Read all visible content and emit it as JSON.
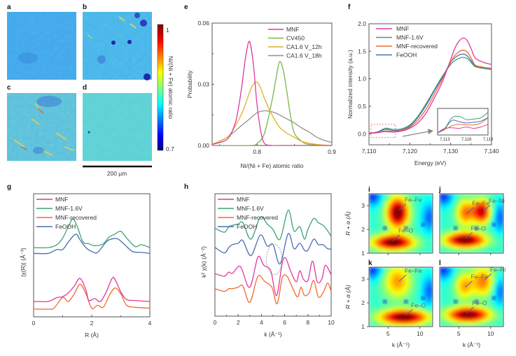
{
  "panels": {
    "a": {
      "label": "a"
    },
    "b": {
      "label": "b"
    },
    "c": {
      "label": "c"
    },
    "d": {
      "label": "d"
    },
    "scalebar": {
      "label": "200 μm"
    },
    "colorbar": {
      "label": "Ni/(Ni + Fe) atomic ratio",
      "max_label": "1",
      "min_label": "0.7",
      "range": [
        0.7,
        1.0
      ]
    },
    "map_means": {
      "a": 0.78,
      "b": 0.78,
      "c": 0.8,
      "d": 0.81
    }
  },
  "chart_data": [
    {
      "id": "e",
      "panel_label": "e",
      "type": "line",
      "title": "",
      "xlabel": "Ni/(Ni + Fe) atomic ratio",
      "ylabel": "Probability",
      "xlim": [
        0.74,
        0.9
      ],
      "ylim": [
        0,
        0.06
      ],
      "xticks": [
        0.8,
        0.9
      ],
      "xtick_labels": [
        "0.8",
        "0.9"
      ],
      "yticks": [
        0,
        0.03,
        0.06
      ],
      "ytick_labels": [
        "0.00",
        "0.03",
        "0.06"
      ],
      "legend_position": "top-right",
      "series": [
        {
          "name": "MNF",
          "color": "#e0399e",
          "x": [
            0.74,
            0.76,
            0.77,
            0.775,
            0.78,
            0.785,
            0.79,
            0.795,
            0.8,
            0.805,
            0.81,
            0.82,
            0.83,
            0.9
          ],
          "y": [
            0.0005,
            0.003,
            0.01,
            0.018,
            0.03,
            0.044,
            0.051,
            0.04,
            0.02,
            0.007,
            0.001,
            0,
            0,
            0
          ]
        },
        {
          "name": "CV450",
          "color": "#7ab648",
          "x": [
            0.74,
            0.79,
            0.8,
            0.81,
            0.82,
            0.825,
            0.83,
            0.835,
            0.84,
            0.845,
            0.85,
            0.86,
            0.87,
            0.9
          ],
          "y": [
            0,
            0,
            0.001,
            0.006,
            0.022,
            0.032,
            0.041,
            0.037,
            0.026,
            0.014,
            0.006,
            0.002,
            0.0005,
            0
          ]
        },
        {
          "name": "CA1.6 V_12h",
          "color": "#e0b020",
          "x": [
            0.74,
            0.76,
            0.77,
            0.78,
            0.79,
            0.795,
            0.8,
            0.805,
            0.81,
            0.82,
            0.83,
            0.84,
            0.85,
            0.86,
            0.88,
            0.9
          ],
          "y": [
            0.0005,
            0.004,
            0.009,
            0.016,
            0.026,
            0.03,
            0.031,
            0.028,
            0.023,
            0.015,
            0.009,
            0.006,
            0.004,
            0.002,
            0.0005,
            0
          ]
        },
        {
          "name": "CA1.6 V_18h",
          "color": "#909090",
          "x": [
            0.74,
            0.76,
            0.78,
            0.79,
            0.8,
            0.81,
            0.82,
            0.83,
            0.84,
            0.85,
            0.86,
            0.87,
            0.88,
            0.89,
            0.9
          ],
          "y": [
            0.0005,
            0.004,
            0.01,
            0.013,
            0.016,
            0.017,
            0.0165,
            0.015,
            0.013,
            0.011,
            0.0085,
            0.0065,
            0.004,
            0.0025,
            0.0015
          ]
        }
      ]
    },
    {
      "id": "f",
      "panel_label": "f",
      "type": "line",
      "title": "",
      "xlabel": "Energy (eV)",
      "ylabel": "Normalized intensity (a.u.)",
      "xlim": [
        7110,
        7140
      ],
      "ylim": [
        -0.2,
        2.0
      ],
      "xticks": [
        7110,
        7120,
        7130,
        7140
      ],
      "xtick_labels": [
        "7,110",
        "7,120",
        "7,130",
        "7,140"
      ],
      "yticks": [
        0,
        0.5,
        1.0,
        1.5,
        2.0
      ],
      "ytick_labels": [
        "0.0",
        "0.5",
        "1.0",
        "1.5",
        "2.0"
      ],
      "legend_position": "top-left",
      "series": [
        {
          "name": "MNF",
          "color": "#e0399e",
          "x": [
            7110,
            7112,
            7114,
            7116,
            7118,
            7120,
            7122,
            7124,
            7126,
            7128,
            7130,
            7131,
            7132,
            7133,
            7134,
            7135,
            7136,
            7138,
            7140
          ],
          "y": [
            0.01,
            0.02,
            0.04,
            0.03,
            0.05,
            0.1,
            0.2,
            0.38,
            0.65,
            0.95,
            1.35,
            1.55,
            1.68,
            1.74,
            1.7,
            1.55,
            1.38,
            1.3,
            1.26
          ]
        },
        {
          "name": "MNF-1.6V",
          "color": "#3fa07a",
          "x": [
            7110,
            7112,
            7114,
            7116,
            7118,
            7120,
            7122,
            7124,
            7126,
            7128,
            7130,
            7131,
            7132,
            7133,
            7134,
            7135,
            7136,
            7138,
            7140
          ],
          "y": [
            0.01,
            0.03,
            0.1,
            0.08,
            0.09,
            0.16,
            0.32,
            0.55,
            0.8,
            1.05,
            1.26,
            1.33,
            1.37,
            1.39,
            1.37,
            1.3,
            1.22,
            1.19,
            1.17
          ]
        },
        {
          "name": "MNF-recovered",
          "color": "#f26a2e",
          "x": [
            7110,
            7112,
            7114,
            7116,
            7118,
            7120,
            7122,
            7124,
            7126,
            7128,
            7130,
            7131,
            7132,
            7133,
            7134,
            7135,
            7136,
            7138,
            7140
          ],
          "y": [
            0.01,
            0.02,
            0.05,
            0.04,
            0.06,
            0.12,
            0.25,
            0.45,
            0.72,
            1.0,
            1.3,
            1.42,
            1.49,
            1.52,
            1.49,
            1.38,
            1.25,
            1.21,
            1.19
          ]
        },
        {
          "name": "FeOOH",
          "color": "#4a6db5",
          "x": [
            7110,
            7112,
            7114,
            7116,
            7118,
            7120,
            7122,
            7124,
            7126,
            7128,
            7130,
            7131,
            7132,
            7133,
            7134,
            7135,
            7136,
            7138,
            7140
          ],
          "y": [
            0.01,
            0.03,
            0.08,
            0.06,
            0.07,
            0.14,
            0.3,
            0.52,
            0.78,
            1.03,
            1.3,
            1.38,
            1.43,
            1.45,
            1.42,
            1.33,
            1.24,
            1.2,
            1.18
          ]
        }
      ],
      "inset": {
        "xlim": [
          7112,
          7119
        ],
        "xticks": [
          7113,
          7116,
          7119
        ],
        "xtick_labels": [
          "7,113",
          "7,116",
          "7,119"
        ]
      }
    },
    {
      "id": "g",
      "panel_label": "g",
      "type": "line",
      "title": "",
      "xlabel": "R (Å)",
      "ylabel": "|χ(R)| (Å⁻³)",
      "xlim": [
        0,
        4
      ],
      "xticks": [
        0,
        2,
        4
      ],
      "xtick_labels": [
        "0",
        "2",
        "4"
      ],
      "legend_position": "top-left",
      "y_offset_stacked": true,
      "series": [
        {
          "name": "MNF",
          "color": "#e0399e",
          "offset": 0.4,
          "x": [
            0,
            0.5,
            0.8,
            1.0,
            1.2,
            1.4,
            1.6,
            1.8,
            1.9,
            2.1,
            2.3,
            2.5,
            2.7,
            2.8,
            3.0,
            3.2,
            3.5,
            4.0
          ],
          "y": [
            0,
            0,
            0.2,
            0.25,
            0.45,
            0.8,
            1.2,
            0.6,
            0.05,
            0.15,
            0.0,
            0.5,
            1.2,
            1.15,
            0.5,
            0.1,
            0.05,
            0.0
          ]
        },
        {
          "name": "MNF-1.6V",
          "color": "#3fa07a",
          "offset": 3.2,
          "x": [
            0,
            0.5,
            0.8,
            1.0,
            1.2,
            1.35,
            1.5,
            1.7,
            1.9,
            2.1,
            2.4,
            2.6,
            2.8,
            3.0,
            3.2,
            3.5,
            3.7,
            4.0
          ],
          "y": [
            0,
            0,
            0.15,
            0.5,
            1.1,
            1.5,
            1.1,
            0.3,
            0.2,
            0.1,
            0.2,
            0.55,
            0.7,
            0.85,
            0.5,
            0.05,
            0.15,
            0.0
          ]
        },
        {
          "name": "MNF-recovered",
          "color": "#f26a2e",
          "offset": 0.0,
          "x": [
            0,
            0.5,
            0.7,
            1.0,
            1.2,
            1.4,
            1.6,
            1.8,
            2.0,
            2.2,
            2.4,
            2.6,
            2.8,
            3.0,
            3.2,
            3.5,
            4.0
          ],
          "y": [
            0,
            0,
            0.05,
            0.6,
            0.4,
            0.8,
            1.3,
            0.8,
            0.05,
            0.2,
            0.1,
            0.7,
            1.1,
            0.8,
            0.2,
            0.1,
            0.05
          ]
        },
        {
          "name": "FeOOH",
          "color": "#4a6db5",
          "offset": 2.9,
          "x": [
            0,
            0.5,
            0.8,
            1.0,
            1.2,
            1.45,
            1.6,
            1.8,
            2.0,
            2.2,
            2.5,
            2.7,
            2.9,
            3.1,
            3.4,
            3.7,
            4.0
          ],
          "y": [
            0,
            0,
            0.2,
            0.2,
            0.6,
            1.0,
            0.7,
            0.3,
            0.1,
            0.05,
            0.6,
            0.75,
            0.75,
            0.5,
            0.1,
            0.05,
            0.0
          ]
        }
      ]
    },
    {
      "id": "h",
      "panel_label": "h",
      "type": "line",
      "title": "",
      "xlabel": "k (Å⁻¹)",
      "ylabel": "k² χ(k) (Å⁻²)",
      "xlim": [
        0,
        10
      ],
      "xticks": [
        0,
        2,
        4,
        6,
        8,
        10
      ],
      "xtick_labels": [
        "0",
        "2",
        "4",
        "6",
        "8",
        "10"
      ],
      "legend_position": "top-left",
      "annotation": "dashed ellipse around k ≈ 5 Å⁻¹",
      "series": [
        {
          "name": "MNF",
          "color": "#e0399e",
          "offset": 0.5,
          "x": [
            0,
            0.8,
            1.2,
            1.5,
            2.0,
            2.3,
            3.0,
            3.7,
            4.2,
            4.8,
            5.3,
            5.8,
            6.1,
            6.5,
            7.0,
            7.3,
            7.6,
            8.0,
            8.4,
            8.8,
            9.2,
            9.5,
            10.0
          ],
          "y": [
            0,
            -0.2,
            0.1,
            0,
            0.5,
            0.35,
            -1.0,
            1.2,
            0.6,
            0.2,
            -1.6,
            0.8,
            1.1,
            0.2,
            -0.6,
            0.2,
            -0.4,
            -0.5,
            0.9,
            -0.6,
            -0.4,
            0.6,
            -0.1
          ]
        },
        {
          "name": "MNF-1.6V",
          "color": "#3fa07a",
          "offset": 3.8,
          "x": [
            0,
            0.8,
            1.2,
            1.5,
            2.0,
            2.4,
            3.1,
            3.9,
            4.5,
            5.0,
            5.6,
            6.3,
            6.8,
            7.3,
            7.7,
            8.0,
            8.5,
            8.9,
            9.3,
            9.7,
            10.0
          ],
          "y": [
            0,
            -0.3,
            0.1,
            0.2,
            0.3,
            0.4,
            -0.8,
            0.8,
            0.3,
            -0.1,
            -0.8,
            1.3,
            -0.2,
            0.1,
            -0.8,
            -0.1,
            0.7,
            0.4,
            0.2,
            -0.2,
            -0.6
          ]
        },
        {
          "name": "MNF-recovered",
          "color": "#f26a2e",
          "offset": -0.6,
          "x": [
            0,
            0.8,
            1.2,
            1.5,
            2.0,
            2.4,
            3.0,
            3.7,
            4.3,
            4.9,
            5.35,
            5.8,
            6.2,
            6.6,
            7.1,
            7.4,
            7.7,
            8.1,
            8.5,
            8.9,
            9.3,
            9.7,
            10.0
          ],
          "y": [
            0,
            -0.2,
            0,
            0,
            0.1,
            0.2,
            -1.0,
            0.9,
            0.5,
            0.1,
            -1.1,
            0.8,
            0.9,
            0.2,
            -0.6,
            0.1,
            -0.5,
            -0.3,
            0.6,
            -0.6,
            -0.3,
            0.4,
            -0.2
          ]
        },
        {
          "name": "FeOOH",
          "color": "#4a6db5",
          "offset": 2.4,
          "x": [
            0,
            0.8,
            1.2,
            1.5,
            2.0,
            2.4,
            3.1,
            3.9,
            4.5,
            5.0,
            5.6,
            6.3,
            6.8,
            7.3,
            7.7,
            8.0,
            8.5,
            8.9,
            9.3,
            9.7,
            10.0
          ],
          "y": [
            0,
            -0.4,
            0,
            0.2,
            0.3,
            0.5,
            -0.6,
            0.9,
            0.1,
            0.2,
            -1.2,
            1.0,
            -0.1,
            0.3,
            -0.2,
            -0.2,
            0.6,
            0.2,
            0.2,
            -0.1,
            -0.1
          ]
        }
      ]
    },
    {
      "id": "wavelets",
      "type": "heatmap",
      "xlabel": "k (Å⁻¹)",
      "ylabel": "R + α (Å)",
      "xlim": [
        2,
        12
      ],
      "ylim": [
        1,
        3.5
      ],
      "xticks": [
        5,
        10
      ],
      "xtick_labels": [
        "5",
        "10"
      ],
      "yticks": [
        1,
        2,
        3
      ],
      "ytick_labels": [
        "1",
        "2",
        "3"
      ],
      "panels": [
        {
          "label": "i",
          "annotations": [
            {
              "text": "Fe–Fe",
              "k": 6.5,
              "R": 2.75
            },
            {
              "text": "Fe–O",
              "k": 5.5,
              "R": 1.45
            }
          ],
          "peaks": [
            {
              "k": 6.5,
              "R": 2.7,
              "intensity": 1.0,
              "sk": 1.2,
              "sr": 0.45
            },
            {
              "k": 5.8,
              "R": 1.45,
              "intensity": 1.0,
              "sk": 2.2,
              "sr": 0.22
            }
          ]
        },
        {
          "label": "j",
          "annotations": [
            {
              "text": "Fe–Fe",
              "k": 6.0,
              "R": 2.6
            },
            {
              "text": "Fe–Ni",
              "k": 8.6,
              "R": 2.7
            },
            {
              "text": "Fe–O",
              "k": 5.8,
              "R": 1.55
            }
          ],
          "peaks": [
            {
              "k": 8.6,
              "R": 2.75,
              "intensity": 0.85,
              "sk": 1.0,
              "sr": 0.35
            },
            {
              "k": 6.0,
              "R": 2.7,
              "intensity": 0.55,
              "sk": 1.0,
              "sr": 0.4
            },
            {
              "k": 6.0,
              "R": 1.55,
              "intensity": 1.0,
              "sk": 2.2,
              "sr": 0.22
            }
          ]
        },
        {
          "label": "k",
          "annotations": [
            {
              "text": "Fe–Fe",
              "k": 6.5,
              "R": 2.85
            },
            {
              "text": "Fe–O",
              "k": 7.5,
              "R": 1.4
            }
          ],
          "peaks": [
            {
              "k": 6.5,
              "R": 2.9,
              "intensity": 0.5,
              "sk": 1.5,
              "sr": 0.5
            },
            {
              "k": 7.5,
              "R": 1.4,
              "intensity": 1.0,
              "sk": 2.6,
              "sr": 0.22
            }
          ]
        },
        {
          "label": "l",
          "annotations": [
            {
              "text": "Fe–Fe",
              "k": 5.8,
              "R": 2.6
            },
            {
              "text": "Fe–Ni",
              "k": 8.8,
              "R": 2.9
            },
            {
              "text": "Fe–O",
              "k": 6.0,
              "R": 1.5
            }
          ],
          "peaks": [
            {
              "k": 8.8,
              "R": 2.9,
              "intensity": 0.55,
              "sk": 1.3,
              "sr": 0.45
            },
            {
              "k": 5.8,
              "R": 2.7,
              "intensity": 0.45,
              "sk": 1.0,
              "sr": 0.4
            },
            {
              "k": 6.5,
              "R": 1.5,
              "intensity": 1.0,
              "sk": 2.3,
              "sr": 0.22
            }
          ]
        }
      ]
    }
  ]
}
